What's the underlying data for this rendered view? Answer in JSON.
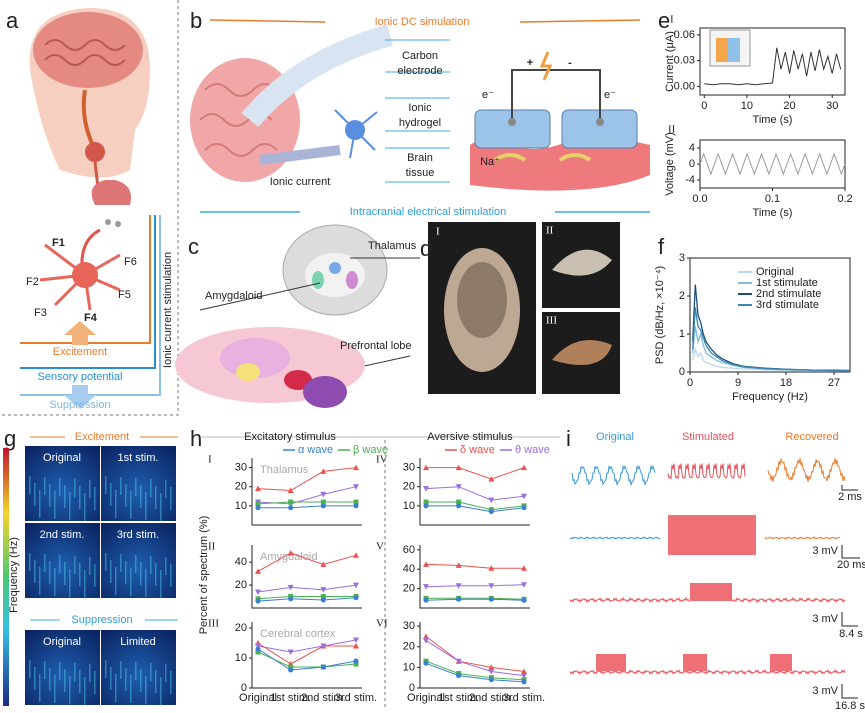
{
  "panel_labels": [
    "a",
    "b",
    "c",
    "d",
    "e",
    "f",
    "g",
    "h",
    "i"
  ],
  "a": {
    "neurons": [
      "F1",
      "F2",
      "F3",
      "F4",
      "F5",
      "F6"
    ],
    "excitement": "Excitement",
    "sensory_potential": "Sensory potential",
    "suppression": "Suppression",
    "stimulation": "Ionic current stimulation"
  },
  "b": {
    "title": "Ionic DC simulation",
    "carbon_electrode": [
      "Carbon",
      "electrode"
    ],
    "ionic_hydrogel": [
      "Ionic",
      "hydrogel"
    ],
    "brain_tissue": [
      "Brain",
      "tissue"
    ],
    "ionic_current": "Ionic current",
    "plus": "+",
    "minus": "-",
    "electrons": [
      "e⁻",
      "e⁻"
    ],
    "ion": "Na⁺",
    "section": "Intracranial electrical stimulation"
  },
  "c": {
    "thalamus": "Thalamus",
    "amygdaloid": "Amygdaloid",
    "prefrontal_lobe": "Prefrontal lobe"
  },
  "d": {
    "views": [
      "I",
      "II",
      "III"
    ]
  },
  "e": [
    {
      "type": "line",
      "numeral": "I",
      "xlabel": "Time (s)",
      "ylabel": "Current (μA)",
      "xlim": [
        -1,
        33
      ],
      "xticks": [
        0,
        10,
        20,
        30
      ],
      "ylim": [
        -0.01,
        0.068
      ],
      "yticks": [
        {
          "value": 0,
          "label": "0.00"
        },
        {
          "value": 0.03,
          "label": "0.03"
        },
        {
          "value": 0.06,
          "label": "0.06"
        }
      ],
      "x": [
        0,
        2,
        4,
        6,
        8,
        10,
        12,
        14,
        16,
        17,
        18,
        19,
        20,
        21,
        22,
        23,
        24,
        25,
        26,
        27,
        28,
        29,
        30,
        31,
        32
      ],
      "series": [
        {
          "color": "#333333",
          "values": [
            0.003,
            0.002,
            0.003,
            0.003,
            0.002,
            0.003,
            0.002,
            0.003,
            0.004,
            0.045,
            0.02,
            0.04,
            0.015,
            0.042,
            0.02,
            0.038,
            0.012,
            0.04,
            0.018,
            0.043,
            0.02,
            0.035,
            0.015,
            0.038,
            0.02
          ]
        }
      ]
    },
    {
      "type": "line",
      "numeral": "II",
      "xlabel": "Time (s)",
      "ylabel": "Voltage (mV)",
      "xlim": [
        0,
        0.2
      ],
      "xticks": [
        {
          "value": 0,
          "label": "0.0"
        },
        {
          "value": 0.1,
          "label": "0.1"
        },
        {
          "value": 0.2,
          "label": "0.2"
        }
      ],
      "ylim": [
        -6,
        6
      ],
      "yticks": [
        -4,
        0,
        4
      ],
      "x": [
        0,
        0.005,
        0.01,
        0.015,
        0.02,
        0.025,
        0.03,
        0.035,
        0.04,
        0.045,
        0.05,
        0.055,
        0.06,
        0.065,
        0.07,
        0.075,
        0.08,
        0.085,
        0.09,
        0.095,
        0.1,
        0.105,
        0.11,
        0.115,
        0.12,
        0.125,
        0.13,
        0.135,
        0.14,
        0.145,
        0.15,
        0.155,
        0.16,
        0.165,
        0.17,
        0.175,
        0.18,
        0.185,
        0.19,
        0.195,
        0.2
      ],
      "series": [
        {
          "color": "#9a9a9a",
          "values": [
            0,
            2.5,
            0,
            -2.5,
            0,
            2.5,
            0,
            -2.5,
            0,
            2.5,
            0,
            -2.5,
            0,
            2.5,
            0,
            -2.5,
            0,
            2.5,
            0,
            -2.5,
            0,
            2.5,
            0,
            -2.5,
            0,
            2.5,
            0,
            -2.5,
            0,
            2.5,
            0,
            -2.5,
            0,
            2.5,
            0,
            -2.5,
            0,
            2.5,
            0,
            -2.5,
            0
          ]
        }
      ]
    }
  ],
  "f": {
    "type": "line",
    "xlabel": "Frequency (Hz)",
    "ylabel": "PSD (dB/Hz, ×10⁻⁴)",
    "xlim": [
      0,
      30
    ],
    "xticks": [
      0,
      9,
      18,
      27
    ],
    "ylim": [
      0,
      3
    ],
    "yticks": [
      0,
      1,
      2,
      3
    ],
    "legend": "upper right",
    "x": [
      0.5,
      1,
      1.5,
      2,
      2.5,
      3,
      4,
      5,
      6,
      8,
      10,
      14,
      18,
      23,
      27,
      30
    ],
    "series": [
      {
        "name": "Original",
        "color": "#b9dbe8",
        "values": [
          0.3,
          0.6,
          0.4,
          0.5,
          0.3,
          0.25,
          0.2,
          0.15,
          0.12,
          0.1,
          0.08,
          0.06,
          0.05,
          0.04,
          0.04,
          0.03
        ]
      },
      {
        "name": "1st stimulate",
        "color": "#7fbcd6",
        "values": [
          0.5,
          1.2,
          0.8,
          1.0,
          0.7,
          0.5,
          0.4,
          0.3,
          0.25,
          0.18,
          0.12,
          0.08,
          0.06,
          0.05,
          0.04,
          0.04
        ]
      },
      {
        "name": "2nd stimulate",
        "color": "#1c4f7c",
        "values": [
          0.8,
          2.3,
          1.5,
          1.3,
          1.0,
          0.8,
          0.6,
          0.45,
          0.35,
          0.22,
          0.15,
          0.1,
          0.07,
          0.05,
          0.05,
          0.04
        ]
      },
      {
        "name": "3rd stimulate",
        "color": "#3a86b4",
        "values": [
          0.6,
          1.7,
          1.2,
          1.1,
          0.9,
          0.7,
          0.5,
          0.4,
          0.3,
          0.2,
          0.14,
          0.09,
          0.07,
          0.05,
          0.04,
          0.04
        ]
      }
    ]
  },
  "g": {
    "excitement": "Excitement",
    "suppression": "Suppression",
    "ylabel": "Frequency (Hz)",
    "tiles": [
      "Original",
      "1st stim.",
      "2nd stim.",
      "3rd stim.",
      "Original",
      "Limited"
    ]
  },
  "h": {
    "ylabel": "Percent of spectrum (%)",
    "categories": [
      "Original",
      "1st stim.",
      "2nd stim.",
      "3rd stim."
    ],
    "columns": [
      {
        "title": "Excitatory stimulus",
        "legend": [
          {
            "name": "α wave",
            "color": "#3b7fd4"
          },
          {
            "name": "β wave",
            "color": "#4caf50"
          }
        ]
      },
      {
        "title": "Aversive stimulus",
        "legend": [
          {
            "name": "δ wave",
            "color": "#e8524f"
          },
          {
            "name": "θ wave",
            "color": "#9b6fdd"
          }
        ]
      }
    ],
    "charts": [
      {
        "type": "line",
        "numeral": "I",
        "region": "Thalamus",
        "ylim": [
          0,
          35
        ],
        "yticks": [
          10,
          20,
          30
        ],
        "series": [
          {
            "color": "#e8524f",
            "marker": "up",
            "values": [
              19,
              18,
              28,
              30
            ]
          },
          {
            "color": "#9b6fdd",
            "marker": "down",
            "values": [
              12,
              11,
              16,
              20
            ]
          },
          {
            "color": "#4caf50",
            "marker": "square",
            "values": [
              11,
              12,
              12,
              12
            ]
          },
          {
            "color": "#3b7fd4",
            "marker": "circle",
            "values": [
              9,
              9,
              10,
              10
            ]
          }
        ]
      },
      {
        "type": "line",
        "numeral": "II",
        "region": "Amygdaloid",
        "ylim": [
          0,
          55
        ],
        "yticks": [
          20,
          40
        ],
        "series": [
          {
            "color": "#e8524f",
            "marker": "up",
            "values": [
              32,
              48,
              38,
              46
            ]
          },
          {
            "color": "#9b6fdd",
            "marker": "down",
            "values": [
              14,
              18,
              16,
              20
            ]
          },
          {
            "color": "#4caf50",
            "marker": "square",
            "values": [
              8,
              10,
              10,
              10
            ]
          },
          {
            "color": "#3b7fd4",
            "marker": "circle",
            "values": [
              6,
              8,
              7,
              9
            ]
          }
        ]
      },
      {
        "type": "line",
        "numeral": "III",
        "region": "Cerebral cortex",
        "ylim": [
          0,
          22
        ],
        "yticks": [
          0,
          10,
          20
        ],
        "series": [
          {
            "color": "#e8524f",
            "marker": "up",
            "values": [
              15,
              8,
              14,
              14
            ]
          },
          {
            "color": "#9b6fdd",
            "marker": "down",
            "values": [
              14,
              12,
              14,
              16
            ]
          },
          {
            "color": "#4caf50",
            "marker": "square",
            "values": [
              12,
              7,
              7,
              8
            ]
          },
          {
            "color": "#3b7fd4",
            "marker": "circle",
            "values": [
              13,
              6,
              7,
              9
            ]
          }
        ]
      },
      {
        "type": "line",
        "numeral": "IV",
        "ylim": [
          0,
          35
        ],
        "yticks": [
          10,
          20,
          30
        ],
        "series": [
          {
            "color": "#e8524f",
            "marker": "up",
            "values": [
              30,
              30,
              24,
              30
            ]
          },
          {
            "color": "#9b6fdd",
            "marker": "down",
            "values": [
              19,
              20,
              13,
              15
            ]
          },
          {
            "color": "#4caf50",
            "marker": "square",
            "values": [
              12,
              12,
              8,
              10
            ]
          },
          {
            "color": "#3b7fd4",
            "marker": "circle",
            "values": [
              10,
              10,
              7,
              9
            ]
          }
        ]
      },
      {
        "type": "line",
        "numeral": "V",
        "ylim": [
          0,
          65
        ],
        "yticks": [
          20,
          40,
          60
        ],
        "series": [
          {
            "color": "#e8524f",
            "marker": "up",
            "values": [
              45,
              44,
              41,
              41
            ]
          },
          {
            "color": "#9b6fdd",
            "marker": "down",
            "values": [
              22,
              23,
              23,
              24
            ]
          },
          {
            "color": "#4caf50",
            "marker": "square",
            "values": [
              10,
              10,
              10,
              9
            ]
          },
          {
            "color": "#3b7fd4",
            "marker": "circle",
            "values": [
              8,
              9,
              9,
              8
            ]
          }
        ]
      },
      {
        "type": "line",
        "numeral": "VI",
        "ylim": [
          0,
          32
        ],
        "yticks": [
          0,
          10,
          20,
          30
        ],
        "series": [
          {
            "color": "#e8524f",
            "marker": "up",
            "values": [
              25,
              13,
              10,
              8
            ]
          },
          {
            "color": "#9b6fdd",
            "marker": "down",
            "values": [
              23,
              13,
              8,
              6
            ]
          },
          {
            "color": "#4caf50",
            "marker": "square",
            "values": [
              13,
              7,
              5,
              4
            ]
          },
          {
            "color": "#3b7fd4",
            "marker": "circle",
            "values": [
              12,
              6,
              4,
              3
            ]
          }
        ]
      }
    ]
  },
  "i": {
    "conditions": [
      "Original",
      "Stimulated",
      "Recovered"
    ],
    "scale_bars": [
      {
        "time": "2 ms"
      },
      {
        "amplitude": "3 mV",
        "time": "20 ms"
      },
      {
        "amplitude": "3 mV",
        "time": "8.4 s"
      },
      {
        "amplitude": "3 mV",
        "time": "16.8 s"
      }
    ]
  }
}
